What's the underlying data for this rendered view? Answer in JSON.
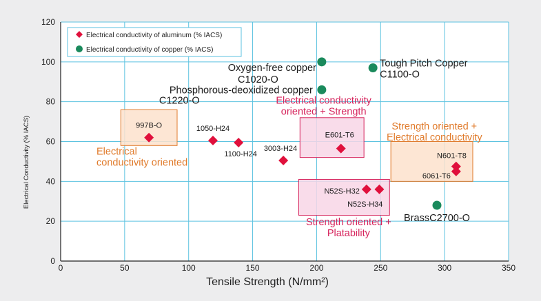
{
  "chart_data": {
    "type": "scatter",
    "title": "",
    "xlabel": "Tensile Strength (N/mm²)",
    "ylabel": "Electrical Conductivity (% IACS)",
    "xlim": [
      0,
      350
    ],
    "ylim": [
      0,
      120
    ],
    "xticks": [
      "0",
      "50",
      "100",
      "150",
      "200",
      "250",
      "300",
      "350"
    ],
    "yticks": [
      "0",
      "20",
      "40",
      "60",
      "80",
      "100",
      "120"
    ],
    "grid": true,
    "legend_position": "top-left",
    "series": [
      {
        "name": "Electrical conductivity of aluminum (% IACS)",
        "marker": "diamond",
        "color": "#e0103c",
        "points": [
          {
            "label": "997B-O",
            "x": 69,
            "y": 62
          },
          {
            "label": "1050-H24",
            "x": 119,
            "y": 60.5
          },
          {
            "label": "1100-H24",
            "x": 139,
            "y": 59.5
          },
          {
            "label": "3003-H24",
            "x": 174,
            "y": 50.5
          },
          {
            "label": "E601-T6",
            "x": 219,
            "y": 56.5
          },
          {
            "label": "N52S-H32",
            "x": 239,
            "y": 36
          },
          {
            "label": "N52S-H34",
            "x": 249,
            "y": 36
          },
          {
            "label": "N601-T8",
            "x": 309,
            "y": 47.5
          },
          {
            "label": "6061-T6",
            "x": 309,
            "y": 45
          }
        ]
      },
      {
        "name": "Electrical conductivity of copper (% IACS)",
        "marker": "circle",
        "color": "#1a8a5c",
        "points": [
          {
            "label": "Oxygen-free copper C1020-O",
            "x": 204,
            "y": 100
          },
          {
            "label": "Tough Pitch Copper C1100-O",
            "x": 244,
            "y": 97
          },
          {
            "label": "Phosphorous-deoxidized copper C1220-O",
            "x": 204,
            "y": 86
          },
          {
            "label": "BrassC2700-O",
            "x": 294,
            "y": 28
          }
        ]
      }
    ],
    "annotations": [
      {
        "text": [
          "Electrical",
          "conductivity oriented"
        ],
        "color": "#e07a2a"
      },
      {
        "text": [
          "Electrical conductivity",
          "oriented + Strength"
        ],
        "color": "#d6245c"
      },
      {
        "text": [
          "Strength oriented +",
          "Electrical conductivity"
        ],
        "color": "#e07a2a"
      },
      {
        "text": [
          "Strength oriented +",
          "Platability"
        ],
        "color": "#d6245c"
      }
    ],
    "point_labels": {
      "997B-O": "997B-O",
      "1050-H24": "1050-H24",
      "1100-H24": "1100-H24",
      "3003-H24": "3003-H24",
      "E601-T6": "E601-T6",
      "N52S-H32": "N52S-H32",
      "N52S-H34": "N52S-H34",
      "N601-T8": "N601-T8",
      "6061-T6": "6061-T6",
      "ofc1": "Oxygen-free copper",
      "ofc2": "C1020-O",
      "tpc1": "Tough Pitch Copper",
      "tpc2": "C1100-O",
      "pdc1": "Phosphorous-deoxidized copper",
      "pdc2": "C1220-O",
      "brass": "BrassC2700-O"
    },
    "colors": {
      "grid": "#5bc2e0",
      "plot_bg": "#ffffff",
      "aluminum": "#e0103c",
      "copper": "#1a8a5c",
      "orange_region": "#e07a2a",
      "magenta_region": "#d6245c"
    }
  }
}
